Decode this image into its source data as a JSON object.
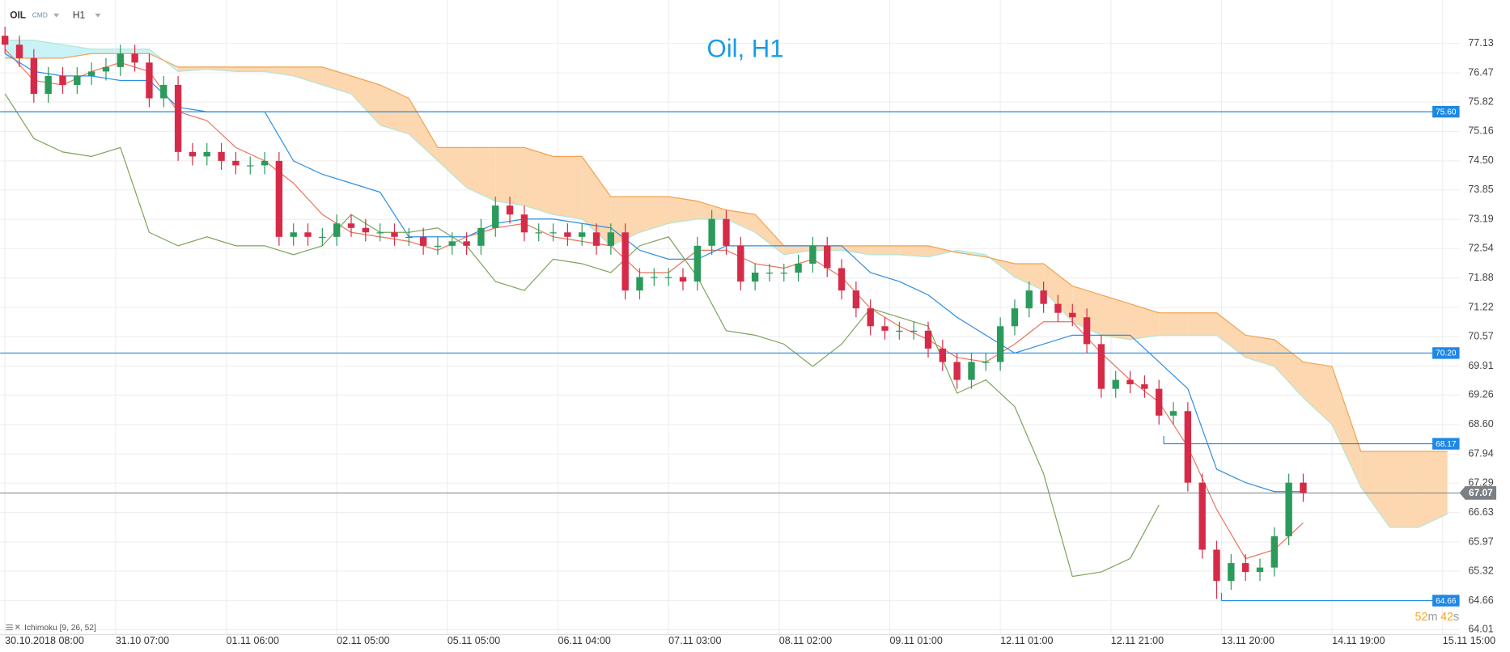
{
  "chart_data": {
    "type": "candlestick",
    "title": "Oil, H1",
    "symbol": "OIL",
    "market": "CMD",
    "timeframe": "H1",
    "indicator": "Ichimoku [9, 26, 52]",
    "countdown": {
      "minutes": 52,
      "minutes_suffix": "m",
      "seconds": 42,
      "seconds_suffix": "s"
    },
    "xlim": [
      -1,
      302.5
    ],
    "ylim": [
      63.9,
      78.1
    ],
    "yticks": [
      77.13,
      76.47,
      75.82,
      75.16,
      {
        "value": 74.5,
        "label": "74.50"
      },
      73.85,
      73.19,
      72.54,
      71.88,
      71.22,
      70.57,
      69.91,
      69.26,
      {
        "value": 68.6,
        "label": "68.60"
      },
      67.94,
      67.29,
      66.63,
      65.97,
      65.32,
      64.66,
      64.01
    ],
    "xticks": [
      {
        "value": 0,
        "label": "30.10.2018  08:00"
      },
      {
        "value": 23,
        "label": "31.10  07:00"
      },
      {
        "value": 46,
        "label": "01.11  06:00"
      },
      {
        "value": 69,
        "label": "02.11  05:00"
      },
      {
        "value": 92,
        "label": "05.11  05:00"
      },
      {
        "value": 115,
        "label": "06.11  04:00"
      },
      {
        "value": 138,
        "label": "07.11  03:00"
      },
      {
        "value": 161,
        "label": "08.11  02:00"
      },
      {
        "value": 184,
        "label": "09.11  01:00"
      },
      {
        "value": 207,
        "label": "12.11  01:00"
      },
      {
        "value": 230,
        "label": "12.11  21:00"
      },
      {
        "value": 253,
        "label": "13.11  20:00"
      },
      {
        "value": 276,
        "label": "14.11  19:00"
      },
      {
        "value": 299,
        "label": "15.11  15:00"
      }
    ],
    "grid": true,
    "candles": {
      "up_color": "#2b9a5b",
      "down_color": "#d62b48",
      "x": [
        0,
        3,
        6,
        9,
        12,
        15,
        18,
        21,
        24,
        27,
        30,
        33,
        36,
        39,
        42,
        45,
        48,
        51,
        54,
        57,
        60,
        63,
        66,
        69,
        72,
        75,
        78,
        81,
        84,
        87,
        90,
        93,
        96,
        99,
        102,
        105,
        108,
        111,
        114,
        117,
        120,
        123,
        126,
        129,
        132,
        135,
        138,
        141,
        144,
        147,
        150,
        153,
        156,
        159,
        162,
        165,
        168,
        171,
        174,
        177,
        180,
        183,
        186,
        189,
        192,
        195,
        198,
        201,
        204,
        207,
        210,
        213,
        216,
        219,
        222,
        225,
        228,
        231,
        234,
        237,
        240,
        243,
        246,
        249,
        252,
        255,
        258,
        261,
        264,
        267,
        270
      ],
      "open": [
        77.3,
        77.1,
        76.8,
        76.0,
        76.4,
        76.2,
        76.4,
        76.5,
        76.6,
        76.9,
        76.7,
        75.9,
        76.2,
        74.7,
        74.6,
        74.7,
        74.5,
        74.4,
        74.4,
        74.5,
        72.8,
        72.9,
        72.8,
        72.8,
        73.1,
        73.0,
        72.9,
        72.9,
        72.8,
        72.8,
        72.6,
        72.6,
        72.7,
        72.6,
        73.0,
        73.5,
        73.3,
        72.9,
        72.9,
        72.9,
        72.8,
        72.9,
        72.6,
        72.9,
        71.6,
        71.9,
        71.9,
        71.9,
        71.8,
        72.6,
        73.2,
        72.6,
        71.8,
        72.0,
        72.0,
        72.0,
        72.2,
        72.6,
        72.1,
        71.6,
        71.2,
        70.8,
        70.7,
        70.7,
        70.7,
        70.3,
        70.0,
        69.6,
        70.0,
        70.0,
        70.8,
        71.2,
        71.6,
        71.3,
        71.1,
        71.0,
        70.4,
        69.4,
        69.6,
        69.5,
        69.4,
        68.8,
        68.9,
        67.3,
        65.8,
        65.1,
        65.5,
        65.3,
        65.4,
        66.1,
        67.3
      ],
      "high": [
        77.5,
        77.3,
        77.0,
        76.6,
        76.6,
        76.6,
        76.7,
        76.8,
        77.1,
        77.1,
        76.9,
        76.4,
        76.4,
        74.9,
        74.9,
        74.9,
        74.7,
        74.6,
        74.7,
        74.7,
        73.1,
        73.1,
        73.0,
        73.3,
        73.3,
        73.2,
        73.1,
        73.1,
        73.0,
        73.0,
        72.8,
        72.9,
        72.9,
        73.2,
        73.7,
        73.7,
        73.5,
        73.1,
        73.1,
        73.1,
        73.1,
        73.1,
        73.1,
        73.1,
        72.1,
        72.1,
        72.1,
        72.1,
        72.8,
        73.4,
        73.4,
        72.8,
        72.2,
        72.2,
        72.2,
        72.4,
        72.8,
        72.8,
        72.3,
        71.8,
        71.4,
        71.0,
        70.9,
        70.9,
        70.9,
        70.5,
        70.2,
        70.2,
        70.2,
        71.0,
        71.4,
        71.8,
        71.8,
        71.5,
        71.3,
        71.2,
        70.6,
        69.8,
        69.8,
        69.7,
        69.6,
        69.1,
        69.1,
        67.5,
        66.0,
        65.7,
        65.7,
        65.6,
        66.3,
        67.5,
        67.5
      ],
      "low": [
        76.9,
        76.6,
        75.8,
        75.8,
        76.0,
        76.0,
        76.2,
        76.3,
        76.4,
        76.5,
        75.7,
        75.7,
        74.5,
        74.4,
        74.4,
        74.3,
        74.2,
        74.2,
        74.2,
        72.6,
        72.6,
        72.6,
        72.6,
        72.6,
        72.8,
        72.7,
        72.7,
        72.6,
        72.6,
        72.4,
        72.4,
        72.4,
        72.4,
        72.4,
        72.8,
        73.1,
        72.7,
        72.7,
        72.7,
        72.6,
        72.6,
        72.4,
        72.4,
        71.4,
        71.4,
        71.7,
        71.7,
        71.6,
        71.6,
        72.4,
        72.4,
        71.6,
        71.6,
        71.8,
        71.8,
        71.8,
        72.0,
        71.9,
        71.4,
        71.0,
        70.6,
        70.5,
        70.5,
        70.5,
        70.1,
        69.8,
        69.4,
        69.4,
        69.8,
        69.8,
        70.6,
        71.0,
        71.1,
        70.9,
        70.8,
        70.2,
        69.2,
        69.2,
        69.3,
        69.2,
        68.6,
        68.6,
        67.1,
        65.6,
        64.7,
        64.9,
        65.1,
        65.1,
        65.2,
        65.9,
        66.87
      ],
      "close": [
        77.1,
        76.8,
        76.0,
        76.4,
        76.2,
        76.4,
        76.5,
        76.6,
        76.9,
        76.7,
        75.9,
        76.2,
        74.7,
        74.6,
        74.7,
        74.5,
        74.4,
        74.4,
        74.5,
        72.8,
        72.9,
        72.8,
        72.8,
        73.1,
        73.0,
        72.9,
        72.9,
        72.8,
        72.8,
        72.6,
        72.6,
        72.7,
        72.6,
        73.0,
        73.5,
        73.3,
        72.9,
        72.9,
        72.9,
        72.8,
        72.9,
        72.6,
        72.9,
        71.6,
        71.9,
        71.9,
        71.9,
        71.8,
        72.6,
        73.2,
        72.6,
        71.8,
        72.0,
        72.0,
        72.0,
        72.2,
        72.6,
        72.1,
        71.6,
        71.2,
        70.8,
        70.7,
        70.7,
        70.7,
        70.3,
        70.0,
        69.6,
        70.0,
        70.0,
        70.8,
        71.2,
        71.6,
        71.3,
        71.1,
        71.0,
        70.4,
        69.4,
        69.6,
        69.5,
        69.4,
        68.8,
        68.9,
        67.3,
        65.8,
        65.1,
        65.5,
        65.3,
        65.4,
        66.1,
        67.3,
        67.07
      ]
    },
    "cloud": {
      "bear_color": "#fcd7b0",
      "bull_color": "#c9f3f7",
      "span_a_color": "#b3e6d6",
      "span_b_color": "#f2a24f",
      "x": [
        0,
        6,
        12,
        18,
        24,
        30,
        36,
        42,
        48,
        54,
        60,
        66,
        72,
        78,
        84,
        90,
        96,
        102,
        108,
        114,
        120,
        126,
        132,
        138,
        144,
        150,
        156,
        162,
        168,
        174,
        180,
        186,
        192,
        198,
        204,
        210,
        216,
        222,
        228,
        234,
        240,
        246,
        252,
        258,
        264,
        270,
        276,
        282,
        288,
        294,
        300
      ],
      "span_a": [
        77.2,
        77.2,
        77.1,
        77.0,
        77.0,
        77.0,
        76.5,
        76.55,
        76.5,
        76.5,
        76.4,
        76.2,
        76.0,
        75.3,
        75.1,
        74.5,
        73.9,
        73.6,
        73.5,
        73.3,
        73.2,
        72.6,
        72.9,
        73.1,
        73.2,
        73.2,
        72.9,
        72.4,
        72.5,
        72.5,
        72.4,
        72.4,
        72.35,
        72.5,
        72.4,
        71.9,
        71.6,
        70.9,
        70.6,
        70.5,
        70.6,
        70.6,
        70.6,
        70.1,
        69.9,
        69.2,
        68.6,
        67.2,
        66.3,
        66.3,
        66.6
      ],
      "span_b": [
        76.8,
        76.8,
        76.8,
        76.9,
        76.9,
        76.9,
        76.6,
        76.6,
        76.6,
        76.6,
        76.6,
        76.6,
        76.4,
        76.2,
        75.9,
        74.8,
        74.8,
        74.8,
        74.8,
        74.6,
        74.6,
        73.7,
        73.7,
        73.7,
        73.6,
        73.4,
        73.3,
        72.6,
        72.6,
        72.6,
        72.6,
        72.6,
        72.6,
        72.45,
        72.35,
        72.2,
        72.2,
        71.7,
        71.5,
        71.3,
        71.1,
        71.1,
        71.1,
        70.6,
        70.5,
        70.0,
        69.9,
        68.0,
        68.0,
        68.0,
        68.0
      ]
    },
    "series": [
      {
        "color": "#e8745c",
        "x": [
          0,
          6,
          12,
          18,
          24,
          30,
          36,
          42,
          48,
          54,
          60,
          66,
          72,
          78,
          84,
          90,
          96,
          102,
          108,
          114,
          120,
          126,
          132,
          138,
          144,
          150,
          156,
          162,
          168,
          174,
          180,
          186,
          192,
          198,
          204,
          210,
          216,
          222,
          228,
          234,
          240,
          246,
          252,
          258,
          264,
          270
        ],
        "values": [
          77.0,
          76.3,
          76.2,
          76.5,
          76.7,
          76.5,
          75.6,
          75.4,
          74.8,
          74.5,
          74.0,
          73.3,
          72.9,
          72.8,
          72.7,
          72.5,
          72.8,
          73.0,
          73.1,
          72.8,
          72.7,
          72.6,
          72.0,
          72.0,
          72.5,
          72.5,
          72.2,
          72.1,
          72.3,
          71.9,
          71.2,
          70.8,
          70.5,
          70.1,
          70.0,
          70.4,
          70.9,
          70.9,
          70.2,
          69.6,
          69.1,
          68.1,
          66.7,
          65.6,
          65.8,
          66.4
        ]
      },
      {
        "color": "#2e8ee0",
        "x": [
          0,
          6,
          12,
          18,
          24,
          30,
          36,
          42,
          48,
          54,
          60,
          66,
          72,
          78,
          84,
          90,
          96,
          102,
          108,
          114,
          120,
          126,
          132,
          138,
          144,
          150,
          156,
          162,
          168,
          174,
          180,
          186,
          192,
          198,
          204,
          210,
          216,
          222,
          228,
          234,
          240,
          246,
          252,
          258,
          264,
          270
        ],
        "values": [
          76.9,
          76.5,
          76.4,
          76.4,
          76.3,
          76.3,
          75.7,
          75.6,
          75.6,
          75.6,
          74.5,
          74.2,
          74.0,
          73.8,
          72.8,
          72.8,
          72.8,
          73.1,
          73.2,
          73.2,
          73.1,
          73.0,
          72.5,
          72.3,
          72.3,
          72.6,
          72.6,
          72.6,
          72.6,
          72.6,
          72.0,
          71.8,
          71.5,
          71.0,
          70.6,
          70.2,
          70.4,
          70.6,
          70.6,
          70.6,
          70.0,
          69.4,
          67.6,
          67.3,
          67.1,
          67.1
        ]
      },
      {
        "color": "#7ca35a",
        "x": [
          0,
          6,
          12,
          18,
          24,
          30,
          36,
          42,
          48,
          54,
          60,
          66,
          72,
          78,
          84,
          90,
          96,
          102,
          108,
          114,
          120,
          126,
          132,
          138,
          144,
          150,
          156,
          162,
          168,
          174,
          180,
          186,
          192,
          198,
          204,
          210,
          216,
          222,
          228,
          234,
          240
        ],
        "values": [
          76.0,
          75.0,
          74.7,
          74.6,
          74.8,
          72.9,
          72.6,
          72.8,
          72.6,
          72.6,
          72.4,
          72.6,
          73.3,
          72.9,
          72.9,
          73.0,
          72.6,
          71.8,
          71.6,
          72.3,
          72.2,
          72.0,
          72.6,
          72.8,
          71.9,
          70.7,
          70.6,
          70.4,
          69.9,
          70.4,
          71.2,
          71.0,
          70.8,
          69.3,
          69.6,
          69.0,
          67.5,
          65.2,
          65.3,
          65.6,
          66.8
        ]
      }
    ],
    "levels": [
      {
        "value": 75.6,
        "label": "75.60",
        "color": "#1e88e5"
      },
      {
        "value": 70.2,
        "label": "70.20",
        "color": "#1e88e5"
      },
      {
        "value": 68.17,
        "label": "68.17",
        "color": "#1e88e5",
        "start": 241
      },
      {
        "value": 64.66,
        "label": "64.66",
        "color": "#1e88e5",
        "start": 253
      }
    ],
    "current_price": {
      "value": 67.07,
      "label": "67.07",
      "color": "#7b8085"
    }
  }
}
